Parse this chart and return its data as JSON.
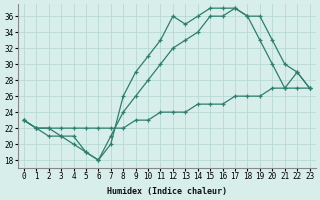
{
  "xlabel": "Humidex (Indice chaleur)",
  "bg_color": "#d8eeeb",
  "line_color": "#2e7d6e",
  "grid_color": "#b8d8d4",
  "xlim": [
    -0.5,
    23.5
  ],
  "ylim": [
    17,
    37.5
  ],
  "yticks": [
    18,
    20,
    22,
    24,
    26,
    28,
    30,
    32,
    34,
    36
  ],
  "xticks": [
    0,
    1,
    2,
    3,
    4,
    5,
    6,
    7,
    8,
    9,
    10,
    11,
    12,
    13,
    14,
    15,
    16,
    17,
    18,
    19,
    20,
    21,
    22,
    23
  ],
  "line1_x": [
    0,
    1,
    2,
    3,
    4,
    5,
    6,
    7,
    8,
    9,
    10,
    11,
    12,
    13,
    14,
    15,
    16,
    17,
    18,
    19,
    20,
    21,
    22,
    23
  ],
  "line1_y": [
    23,
    22,
    21,
    21,
    20,
    19,
    18,
    20,
    26,
    29,
    31,
    33,
    36,
    35,
    36,
    37,
    37,
    37,
    36,
    33,
    30,
    27,
    29,
    27
  ],
  "line2_x": [
    0,
    1,
    2,
    3,
    4,
    5,
    6,
    7,
    8,
    9,
    10,
    11,
    12,
    13,
    14,
    15,
    16,
    17,
    18,
    19,
    20,
    21,
    22,
    23
  ],
  "line2_y": [
    23,
    22,
    22,
    21,
    21,
    19,
    18,
    21,
    24,
    26,
    28,
    30,
    32,
    33,
    34,
    36,
    36,
    37,
    36,
    36,
    33,
    30,
    29,
    27
  ],
  "line3_x": [
    0,
    1,
    2,
    3,
    4,
    5,
    6,
    7,
    8,
    9,
    10,
    11,
    12,
    13,
    14,
    15,
    16,
    17,
    18,
    19,
    20,
    21,
    22,
    23
  ],
  "line3_y": [
    23,
    22,
    22,
    22,
    22,
    22,
    22,
    22,
    22,
    23,
    23,
    24,
    24,
    24,
    25,
    25,
    25,
    26,
    26,
    26,
    27,
    27,
    27,
    27
  ]
}
